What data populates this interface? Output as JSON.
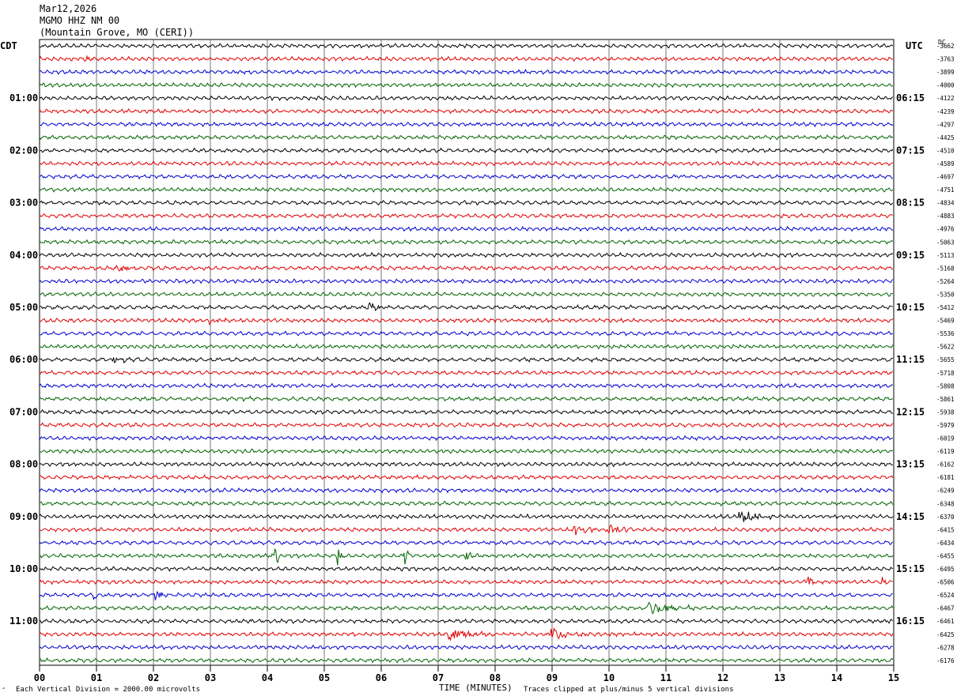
{
  "header": {
    "date": "Mar12,2026",
    "station": "MGMO HHZ NM 00",
    "location": "(Mountain Grove, MO (CERI))"
  },
  "left_axis_title": "CDT",
  "right_axis_title": "UTC",
  "dc_label": "DC",
  "footer": {
    "scale_note": "Each Vertical Division = 2000.00 microvolts",
    "xlabel": "TIME (MINUTES)",
    "clip_note": "Traces clipped at plus/minus 5 vertical divisions",
    "corner_mark": "″"
  },
  "chart_data": {
    "type": "line",
    "title": "",
    "xlabel": "TIME (MINUTES)",
    "xlim": [
      0,
      15
    ],
    "x_ticks": [
      "00",
      "01",
      "02",
      "03",
      "04",
      "05",
      "06",
      "07",
      "08",
      "09",
      "10",
      "11",
      "12",
      "13",
      "14",
      "15"
    ],
    "left_time_labels": [
      "01:00",
      "02:00",
      "03:00",
      "04:00",
      "05:00",
      "06:00",
      "07:00",
      "08:00",
      "09:00",
      "10:00",
      "11:00"
    ],
    "right_time_labels": [
      "06:15",
      "07:15",
      "08:15",
      "09:15",
      "10:15",
      "11:15",
      "12:15",
      "13:15",
      "14:15",
      "15:15",
      "16:15"
    ],
    "trace_colors": [
      "#000000",
      "#e00000",
      "#0000d0",
      "#006400"
    ],
    "dc_offsets": [
      "-3662",
      "-3763",
      "-3899",
      "-4000",
      "-4122",
      "-4239",
      "-4297",
      "-4425",
      "-4510",
      "-4589",
      "-4697",
      "-4751",
      "-4834",
      "-4883",
      "-4976",
      "-5063",
      "-5113",
      "-5168",
      "-5264",
      "-5350",
      "-5412",
      "-5469",
      "-5536",
      "-5622",
      "-5655",
      "-5718",
      "-5808",
      "-5861",
      "-5938",
      "-5979",
      "-6019",
      "-6119",
      "-6162",
      "-6181",
      "-6249",
      "-6348",
      "-6370",
      "-6415",
      "-6434",
      "-6455",
      "-6495",
      "-6506",
      "-6524",
      "-6467",
      "-6461",
      "-6425",
      "-6278",
      "-6176"
    ],
    "events": [
      {
        "trace": 1,
        "minute": 0.8,
        "duration": 0.3,
        "amp": 4
      },
      {
        "trace": 17,
        "minute": 1.3,
        "duration": 0.9,
        "amp": 3
      },
      {
        "trace": 21,
        "minute": 3.0,
        "duration": 0.4,
        "amp": 4
      },
      {
        "trace": 20,
        "minute": 5.8,
        "duration": 0.3,
        "amp": 6
      },
      {
        "trace": 24,
        "minute": 1.3,
        "duration": 0.8,
        "amp": 3.5
      },
      {
        "trace": 27,
        "minute": 3.6,
        "duration": 0.5,
        "amp": 3
      },
      {
        "trace": 36,
        "minute": 12.3,
        "duration": 0.6,
        "amp": 8
      },
      {
        "trace": 37,
        "minute": 9.4,
        "duration": 0.4,
        "amp": 7
      },
      {
        "trace": 37,
        "minute": 10.0,
        "duration": 0.4,
        "amp": 6
      },
      {
        "trace": 39,
        "minute": 4.15,
        "duration": 0.1,
        "amp": 10
      },
      {
        "trace": 39,
        "minute": 5.25,
        "duration": 0.08,
        "amp": 12
      },
      {
        "trace": 39,
        "minute": 6.42,
        "duration": 0.1,
        "amp": 10
      },
      {
        "trace": 39,
        "minute": 7.5,
        "duration": 0.1,
        "amp": 7
      },
      {
        "trace": 41,
        "minute": 13.5,
        "duration": 0.1,
        "amp": 8
      },
      {
        "trace": 41,
        "minute": 14.8,
        "duration": 0.1,
        "amp": 6
      },
      {
        "trace": 42,
        "minute": 0.95,
        "duration": 0.1,
        "amp": 6
      },
      {
        "trace": 42,
        "minute": 2.05,
        "duration": 0.1,
        "amp": 9
      },
      {
        "trace": 43,
        "minute": 10.7,
        "duration": 0.8,
        "amp": 8
      },
      {
        "trace": 45,
        "minute": 7.2,
        "duration": 0.8,
        "amp": 8
      },
      {
        "trace": 45,
        "minute": 9.0,
        "duration": 0.6,
        "amp": 7
      }
    ]
  }
}
